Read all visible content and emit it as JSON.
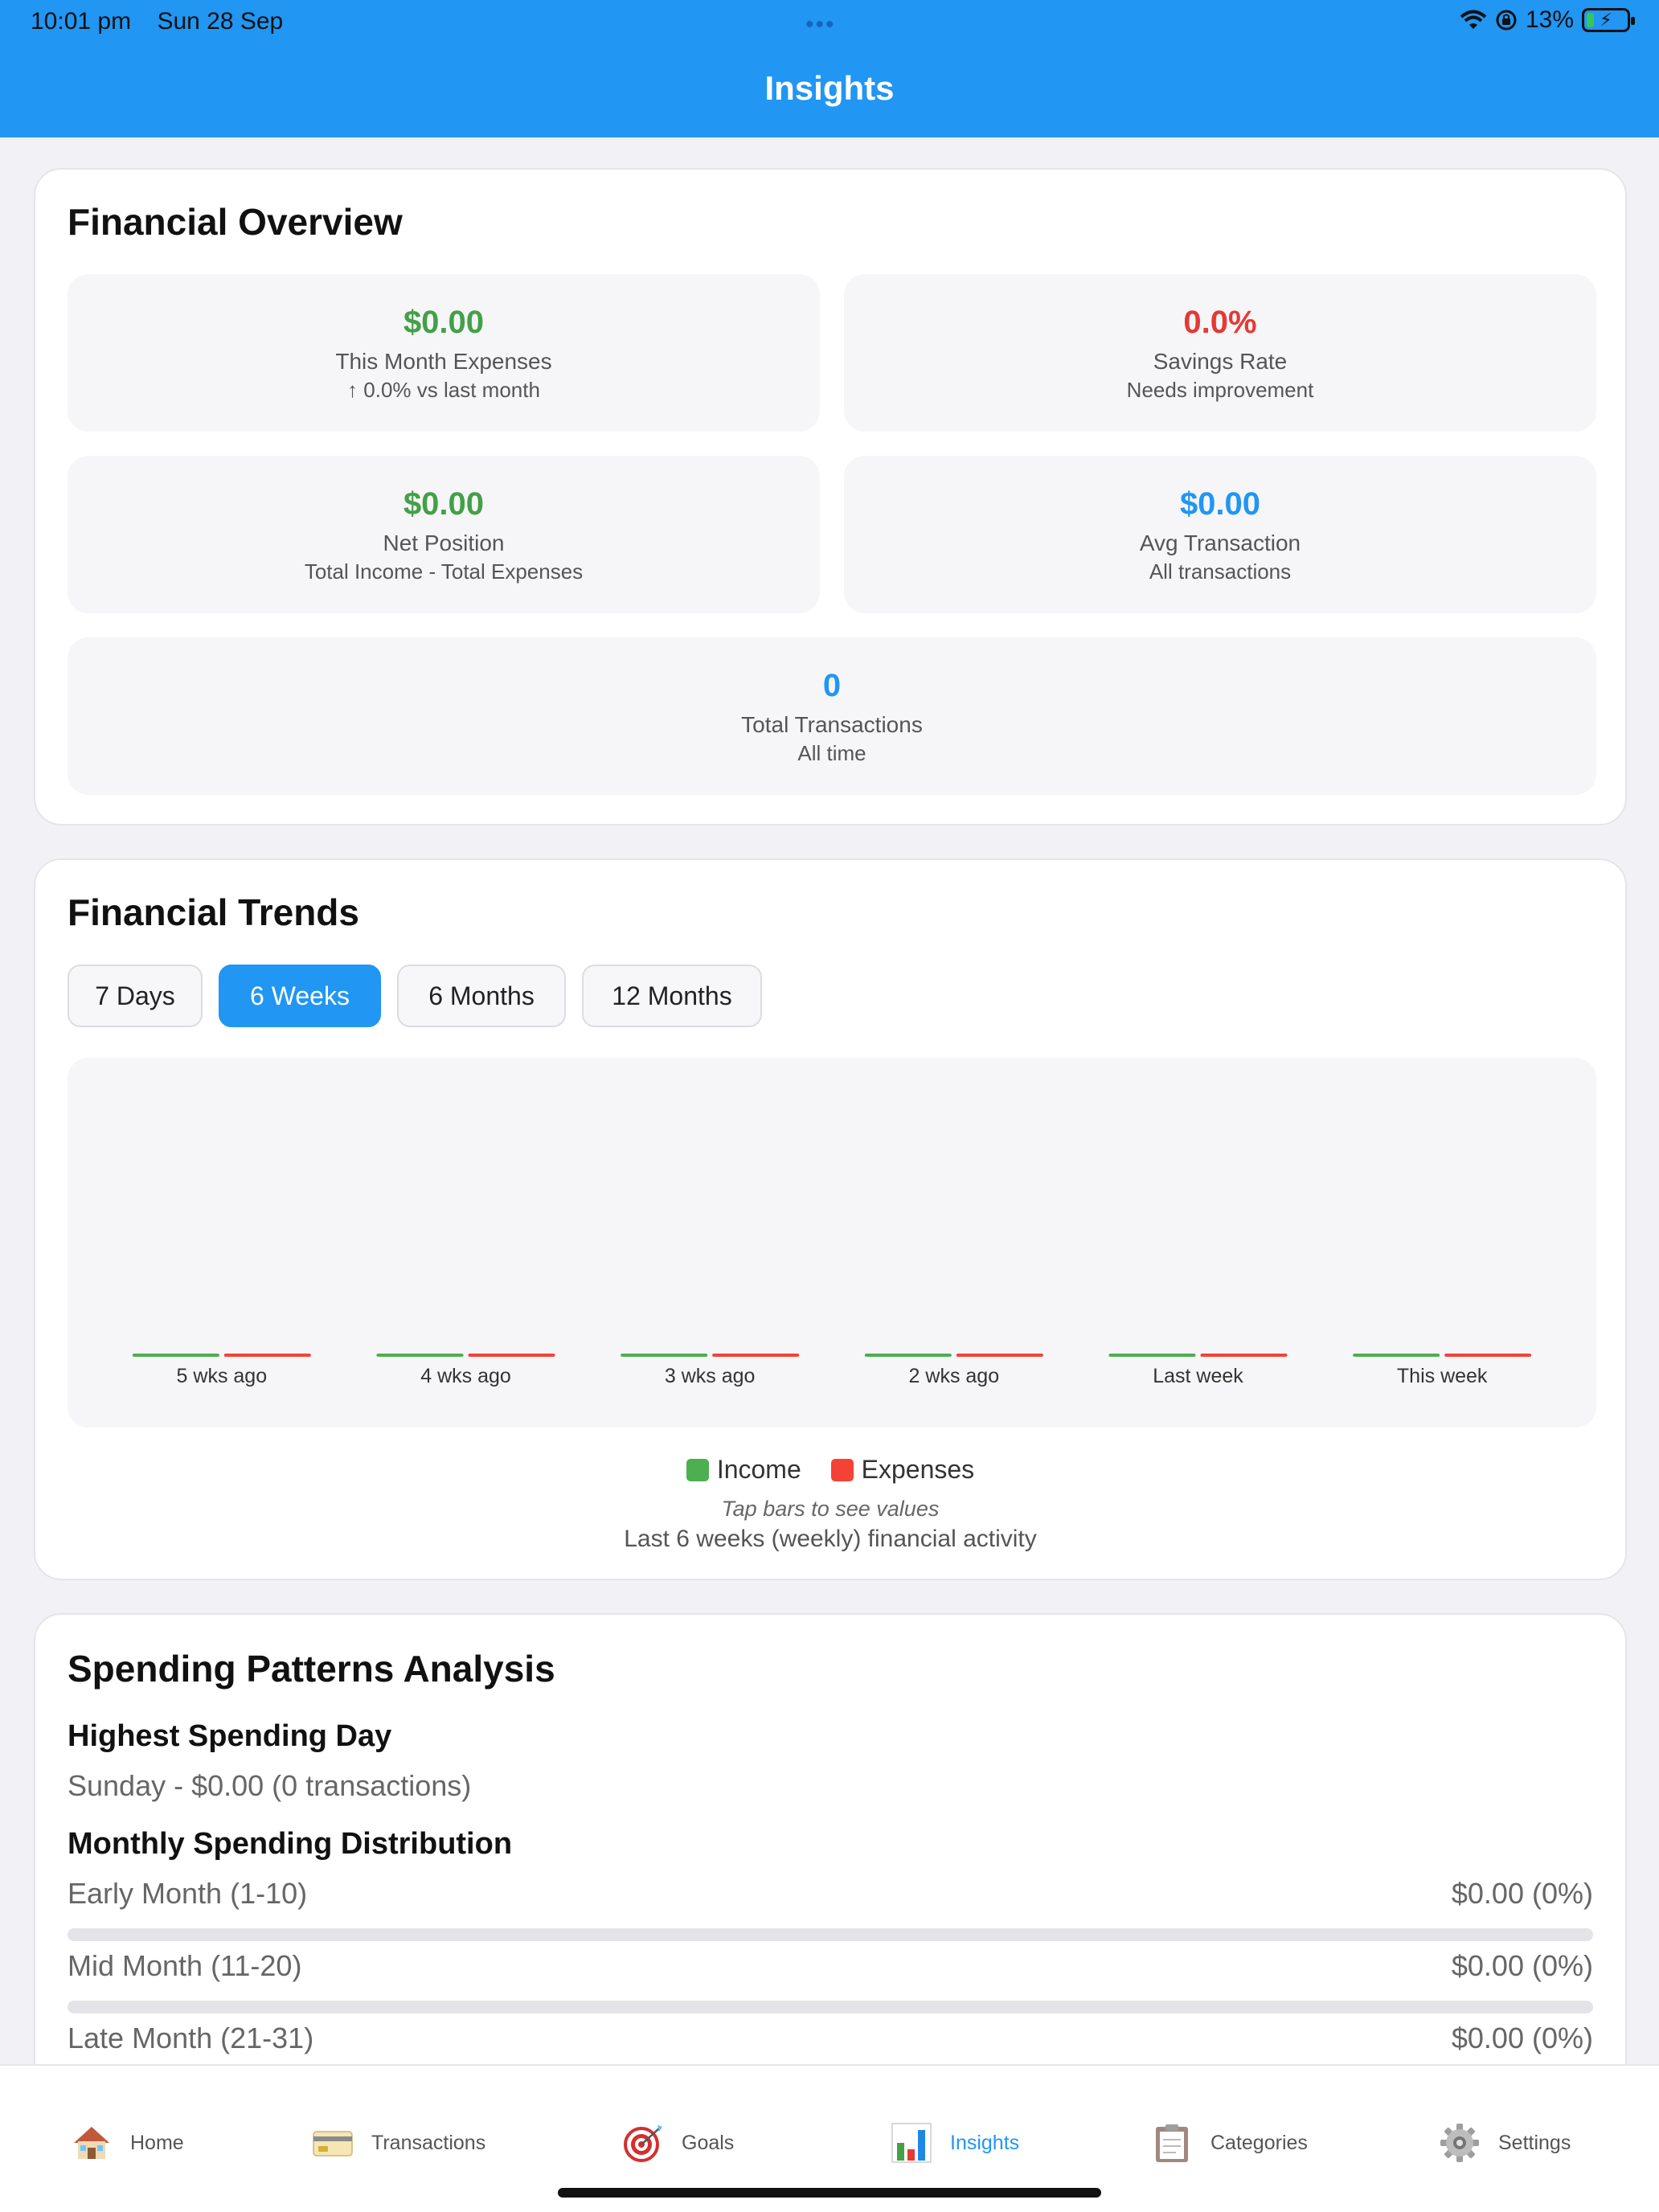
{
  "status_bar": {
    "time": "10:01 pm",
    "date": "Sun 28 Sep",
    "dots": "•••",
    "battery": "13%"
  },
  "header": {
    "title": "Insights"
  },
  "overview": {
    "title": "Financial Overview",
    "month_expenses": {
      "value": "$0.00",
      "label": "This Month Expenses",
      "sub": "↑ 0.0% vs last month"
    },
    "savings_rate": {
      "value": "0.0%",
      "label": "Savings Rate",
      "sub": "Needs improvement"
    },
    "net_position": {
      "value": "$0.00",
      "label": "Net Position",
      "sub": "Total Income - Total Expenses"
    },
    "avg_transaction": {
      "value": "$0.00",
      "label": "Avg Transaction",
      "sub": "All transactions"
    },
    "total_transactions": {
      "value": "0",
      "label": "Total Transactions",
      "sub": "All time"
    }
  },
  "trends": {
    "title": "Financial Trends",
    "tabs": [
      {
        "label": "7 Days",
        "active": false
      },
      {
        "label": "6 Weeks",
        "active": true
      },
      {
        "label": "6 Months",
        "active": false
      },
      {
        "label": "12 Months",
        "active": false
      }
    ],
    "legend_income": "Income",
    "legend_expenses": "Expenses",
    "hint": "Tap bars to see values",
    "caption": "Last 6 weeks (weekly) financial activity",
    "colors": {
      "income": "#4caf50",
      "expenses": "#f44336"
    }
  },
  "chart_data": {
    "type": "bar",
    "categories": [
      "5 wks ago",
      "4 wks ago",
      "3 wks ago",
      "2 wks ago",
      "Last week",
      "This week"
    ],
    "series": [
      {
        "name": "Income",
        "values": [
          0,
          0,
          0,
          0,
          0,
          0
        ]
      },
      {
        "name": "Expenses",
        "values": [
          0,
          0,
          0,
          0,
          0,
          0
        ]
      }
    ],
    "title": "",
    "xlabel": "",
    "ylabel": "",
    "ylim": [
      0,
      1
    ],
    "grid": false,
    "legend": "bottom"
  },
  "spending": {
    "title": "Spending Patterns Analysis",
    "highest_day_title": "Highest Spending Day",
    "highest_day_text": "Sunday - $0.00 (0 transactions)",
    "distribution_title": "Monthly Spending Distribution",
    "rows": [
      {
        "label": "Early Month (1-10)",
        "amount": "$0.00 (0%)",
        "fraction": 0
      },
      {
        "label": "Mid Month (11-20)",
        "amount": "$0.00 (0%)",
        "fraction": 0
      },
      {
        "label": "Late Month (21-31)",
        "amount": "$0.00 (0%)",
        "fraction": 0
      }
    ]
  },
  "nav": {
    "items": [
      {
        "label": "Home",
        "icon": "house-icon",
        "active": false
      },
      {
        "label": "Transactions",
        "icon": "credit-card-icon",
        "active": false
      },
      {
        "label": "Goals",
        "icon": "target-icon",
        "active": false
      },
      {
        "label": "Insights",
        "icon": "bar-chart-icon",
        "active": true
      },
      {
        "label": "Categories",
        "icon": "clipboard-icon",
        "active": false
      },
      {
        "label": "Settings",
        "icon": "gear-icon",
        "active": false
      }
    ]
  }
}
